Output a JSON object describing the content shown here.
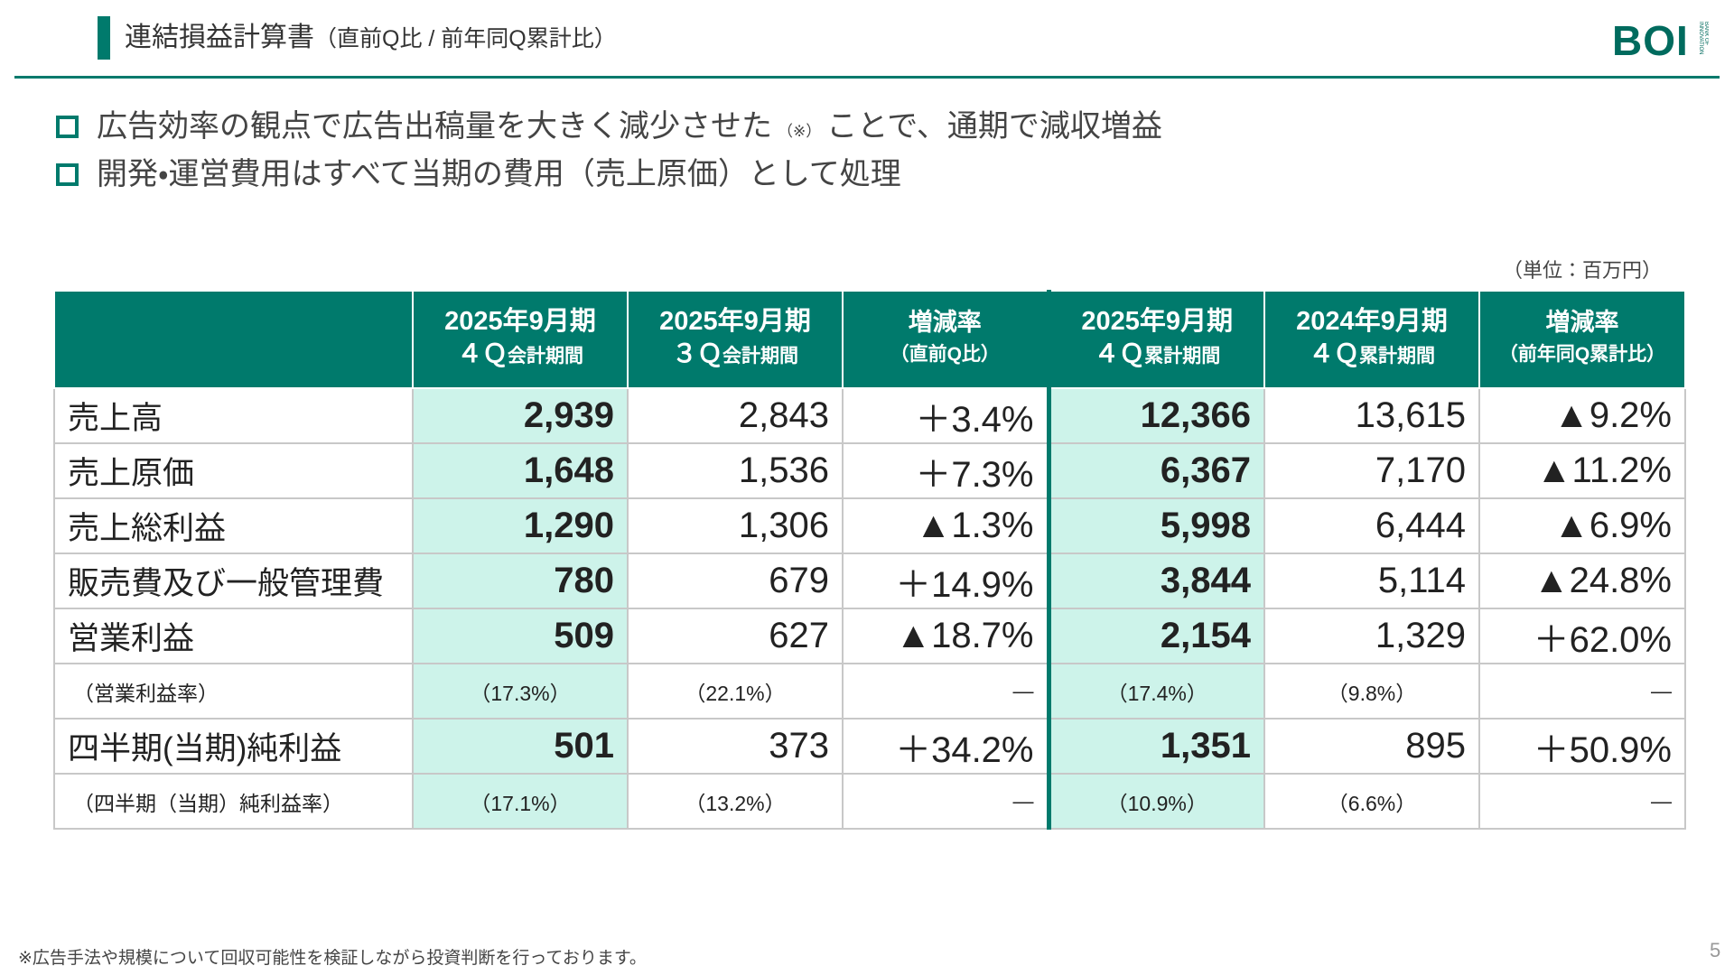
{
  "header": {
    "title": "連結損益計算書",
    "subtitle": "（直前Q比 / 前年同Q累計比）",
    "logo": "BOI",
    "logo_tagline": "BANK OF INNOVATION"
  },
  "bullets": [
    {
      "before": "広告効率の観点で広告出稿量を大きく減少させた",
      "note": "（※）",
      "after": "ことで、通期で減収増益"
    },
    {
      "before": "開発・運営費用はすべて当期の費用（売上原価）として処理"
    }
  ],
  "unit": "（単位：百万円）",
  "table": {
    "columns": [
      {
        "line1": "2025年9月期",
        "q": "４Ｑ",
        "period": "会計期間"
      },
      {
        "line1": "2025年9月期",
        "q": "３Ｑ",
        "period": "会計期間"
      },
      {
        "line1": "増減率",
        "period": "（直前Q比）"
      },
      {
        "line1": "2025年9月期",
        "q": "４Ｑ",
        "period": "累計期間"
      },
      {
        "line1": "2024年9月期",
        "q": "４Ｑ",
        "period": "累計期間"
      },
      {
        "line1": "増減率",
        "period": "（前年同Q累計比）"
      }
    ],
    "rows": [
      {
        "label": "売上高",
        "cells": [
          "2,939",
          "2,843",
          "＋3.4%",
          "12,366",
          "13,615",
          "▲9.2%"
        ]
      },
      {
        "label": "売上原価",
        "cells": [
          "1,648",
          "1,536",
          "＋7.3%",
          "6,367",
          "7,170",
          "▲11.2%"
        ]
      },
      {
        "label": "売上総利益",
        "cells": [
          "1,290",
          "1,306",
          "▲1.3%",
          "5,998",
          "6,444",
          "▲6.9%"
        ]
      },
      {
        "label": "販売費及び一般管理費",
        "cells": [
          "780",
          "679",
          "＋14.9%",
          "3,844",
          "5,114",
          "▲24.8%"
        ]
      },
      {
        "label": "営業利益",
        "cells": [
          "509",
          "627",
          "▲18.7%",
          "2,154",
          "1,329",
          "＋62.0%"
        ]
      },
      {
        "label": "（営業利益率）",
        "cells": [
          "（17.3%）",
          "（22.1%）",
          "—",
          "（17.4%）",
          "（9.8%）",
          "—"
        ]
      },
      {
        "label": "四半期(当期)純利益",
        "cells": [
          "501",
          "373",
          "＋34.2%",
          "1,351",
          "895",
          "＋50.9%"
        ]
      },
      {
        "label": "（四半期（当期）純利益率）",
        "cells": [
          "（17.1%）",
          "（13.2%）",
          "—",
          "（10.9%）",
          "（6.6%）",
          "—"
        ]
      }
    ]
  },
  "footnote": "※広告手法や規模について回収可能性を検証しながら投資判断を行っております。",
  "page_number": "5"
}
